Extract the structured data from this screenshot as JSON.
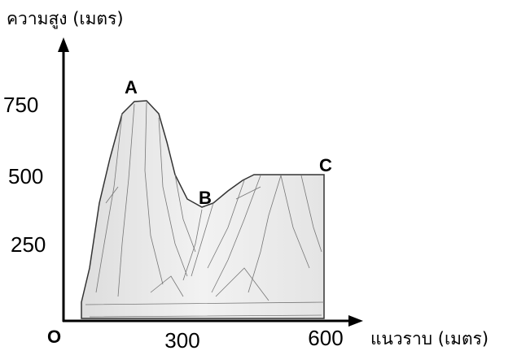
{
  "axes": {
    "y_label": "ความสูง (เมตร)",
    "x_label": "แนวราบ (เมตร)",
    "origin": "O",
    "y_ticks": [
      750,
      500,
      250
    ],
    "x_ticks": [
      300,
      600
    ]
  },
  "points": [
    {
      "label": "A"
    },
    {
      "label": "B"
    },
    {
      "label": "C"
    }
  ]
}
